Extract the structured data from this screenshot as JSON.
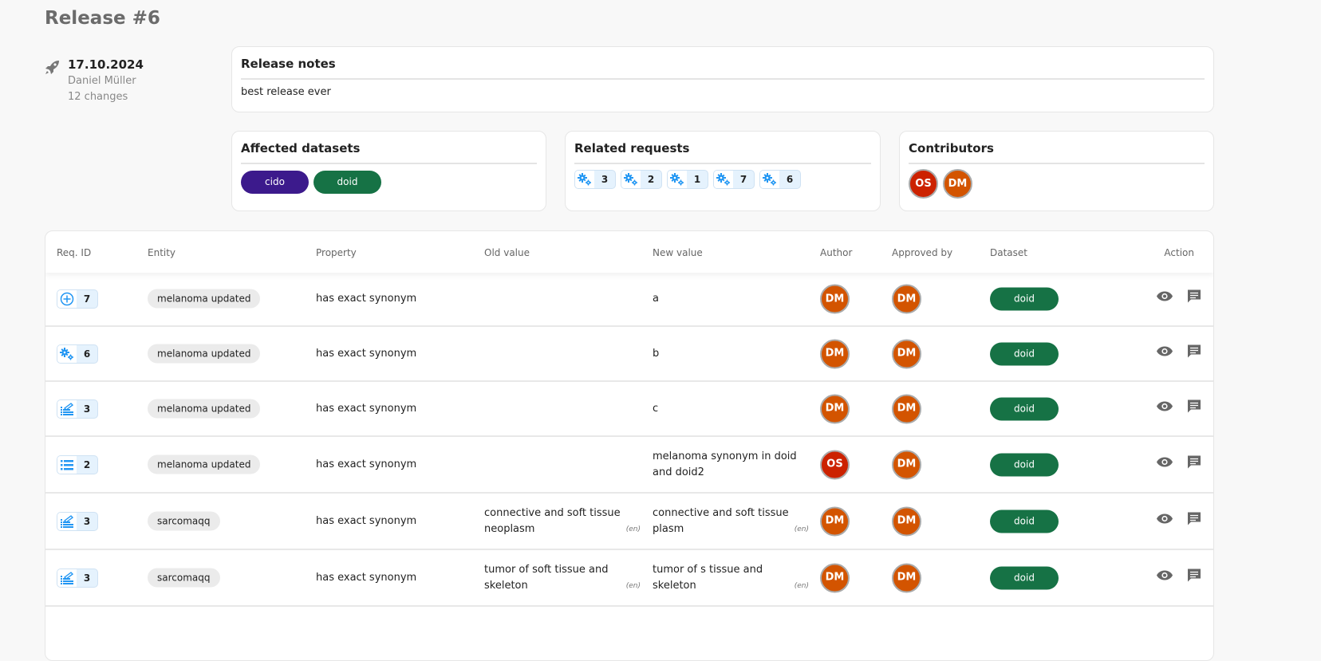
{
  "page": {
    "title": "Release #6"
  },
  "release": {
    "date": "17.10.2024",
    "author": "Daniel Müller",
    "changes": "12 changes"
  },
  "notes": {
    "title": "Release notes",
    "text": "best release ever"
  },
  "datasets": {
    "title": "Affected datasets",
    "items": [
      {
        "label": "cido",
        "color": "#3c1a8c"
      },
      {
        "label": "doid",
        "color": "#167245"
      }
    ]
  },
  "requests": {
    "title": "Related requests",
    "items": [
      {
        "id": "3",
        "icon": "gears-icon"
      },
      {
        "id": "2",
        "icon": "gears-icon"
      },
      {
        "id": "1",
        "icon": "gears-icon"
      },
      {
        "id": "7",
        "icon": "gears-icon"
      },
      {
        "id": "6",
        "icon": "gears-icon"
      }
    ]
  },
  "contributors": {
    "title": "Contributors",
    "items": [
      {
        "initials": "OS",
        "color": "#cc2200"
      },
      {
        "initials": "DM",
        "color": "#d35400"
      }
    ]
  },
  "table": {
    "headers": [
      "Req. ID",
      "Entity",
      "Property",
      "Old value",
      "New value",
      "Author",
      "Approved by",
      "Dataset",
      "Action"
    ],
    "rows": [
      {
        "req": "7",
        "req_icon": "plus-circle-icon",
        "entity": "melanoma updated",
        "property": "has exact synonym",
        "old": "",
        "old_lang": "",
        "new": "a",
        "new_lang": "",
        "author": "DM",
        "approved": "DM",
        "dataset": "doid"
      },
      {
        "req": "6",
        "req_icon": "gears-icon",
        "entity": "melanoma updated",
        "property": "has exact synonym",
        "old": "",
        "old_lang": "",
        "new": "b",
        "new_lang": "",
        "author": "DM",
        "approved": "DM",
        "dataset": "doid"
      },
      {
        "req": "3",
        "req_icon": "edit-list-icon",
        "entity": "melanoma updated",
        "property": "has exact synonym",
        "old": "",
        "old_lang": "",
        "new": "c",
        "new_lang": "",
        "author": "DM",
        "approved": "DM",
        "dataset": "doid"
      },
      {
        "req": "2",
        "req_icon": "list-icon",
        "entity": "melanoma updated",
        "property": "has exact synonym",
        "old": "",
        "old_lang": "",
        "new": "melanoma synonym in doid and doid2",
        "new_lang": "",
        "author": "OS",
        "approved": "DM",
        "dataset": "doid"
      },
      {
        "req": "3",
        "req_icon": "edit-list-icon",
        "entity": "sarcomaqq",
        "property": "has exact synonym",
        "old": "connective and soft tissue neoplasm",
        "old_lang": "(en)",
        "new": "connective and soft tissue plasm",
        "new_lang": "(en)",
        "author": "DM",
        "approved": "DM",
        "dataset": "doid"
      },
      {
        "req": "3",
        "req_icon": "edit-list-icon",
        "entity": "sarcomaqq",
        "property": "has exact synonym",
        "old": "tumor of soft tissue and skeleton",
        "old_lang": "(en)",
        "new": "tumor of s tissue and skeleton",
        "new_lang": "(en)",
        "author": "DM",
        "approved": "DM",
        "dataset": "doid"
      }
    ]
  },
  "colors": {
    "accent": "#2196f3",
    "dataset": "#167245",
    "OS": "#cc2200",
    "DM": "#d35400"
  }
}
